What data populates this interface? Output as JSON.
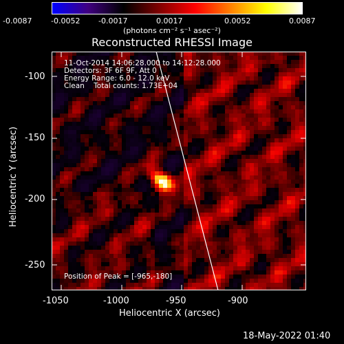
{
  "colorbar": {
    "ticks": [
      "-0.0087",
      "-0.0052",
      "-0.0017",
      "0.0017",
      "0.0052",
      "0.0087"
    ],
    "unit_label": "(photons cm⁻² s⁻¹ asec⁻²)",
    "colors": [
      "#0000ff",
      "#400080",
      "#000000",
      "#800000",
      "#ff0000",
      "#ff8000",
      "#ffff00",
      "#ffffff"
    ]
  },
  "title": "Reconstructed RHESSI Image",
  "info": {
    "line1": "11-Oct-2014 14:06:28.000 to 14:12:28.000",
    "line2": "Detectors: 3F 6F 9F, Att 0",
    "line3": "Energy Range: 6.0 - 12.0 keV",
    "line4": "Clean    Total counts: 1.73E+04"
  },
  "peak_label": "Position of Peak = [-965,-180]",
  "axes": {
    "xlabel": "Heliocentric X (arcsec)",
    "ylabel": "Heliocentric Y (arcsec)",
    "xticks": [
      "-1050",
      "-1000",
      "-950",
      "-900"
    ],
    "yticks": [
      "-100",
      "-150",
      "-200",
      "-250"
    ],
    "xlim": [
      -1055,
      -845
    ],
    "ylim": [
      -272,
      -75
    ]
  },
  "image": {
    "peak_x": -965,
    "peak_y": -180,
    "limb_color": "#ffffff"
  },
  "timestamp": "18-May-2022 01:40"
}
